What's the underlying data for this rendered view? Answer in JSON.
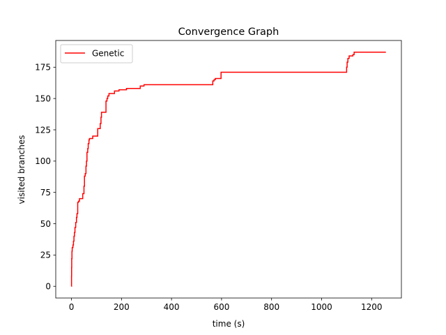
{
  "chart_data": {
    "type": "line",
    "title": "Convergence Graph",
    "xlabel": "time (s)",
    "ylabel": "visited branches",
    "xlim": [
      -62.8,
      1319
    ],
    "ylim": [
      -9.35,
      196.35
    ],
    "xticks": [
      0,
      200,
      400,
      600,
      800,
      1000,
      1200
    ],
    "yticks": [
      0,
      25,
      50,
      75,
      100,
      125,
      150,
      175
    ],
    "grid": false,
    "legend_position": "top-left",
    "colors": {
      "series": "#ff0000",
      "axes": "#000000",
      "background": "#ffffff"
    },
    "series": [
      {
        "name": "Genetic",
        "color": "#ff0000",
        "step": true,
        "x": [
          0,
          0.3,
          0.6,
          1,
          2,
          3,
          6,
          8,
          10,
          12,
          14,
          17,
          20,
          22,
          25,
          28,
          32,
          38,
          45,
          50,
          52,
          55,
          58,
          60,
          62,
          65,
          67,
          70,
          72,
          75,
          80,
          85,
          95,
          105,
          115,
          118,
          120,
          125,
          130,
          138,
          142,
          145,
          150,
          160,
          172,
          180,
          190,
          200,
          220,
          265,
          275,
          282,
          290,
          300,
          320,
          350,
          400,
          450,
          500,
          540,
          565,
          570,
          575,
          590,
          598,
          650,
          700,
          800,
          900,
          1000,
          1050,
          1098,
          1100,
          1102,
          1105,
          1110,
          1115,
          1125,
          1130,
          1200,
          1257
        ],
        "y": [
          0,
          8,
          15,
          22,
          28,
          31,
          33,
          36,
          40,
          43,
          47,
          51,
          55,
          58,
          67,
          68,
          70,
          70,
          74,
          80,
          88,
          90,
          96,
          100,
          107,
          110,
          114,
          117,
          118,
          118,
          118,
          120,
          120,
          126,
          130,
          135,
          139,
          139,
          139,
          148,
          150,
          152,
          154,
          154,
          156,
          156,
          157,
          157,
          158,
          158,
          160,
          160,
          161,
          161,
          161,
          161,
          161,
          161,
          161,
          161,
          164,
          165,
          166,
          166,
          171,
          171,
          171,
          171,
          171,
          171,
          171,
          171,
          175,
          179,
          182,
          184,
          184,
          185,
          187,
          187,
          187
        ]
      }
    ]
  }
}
